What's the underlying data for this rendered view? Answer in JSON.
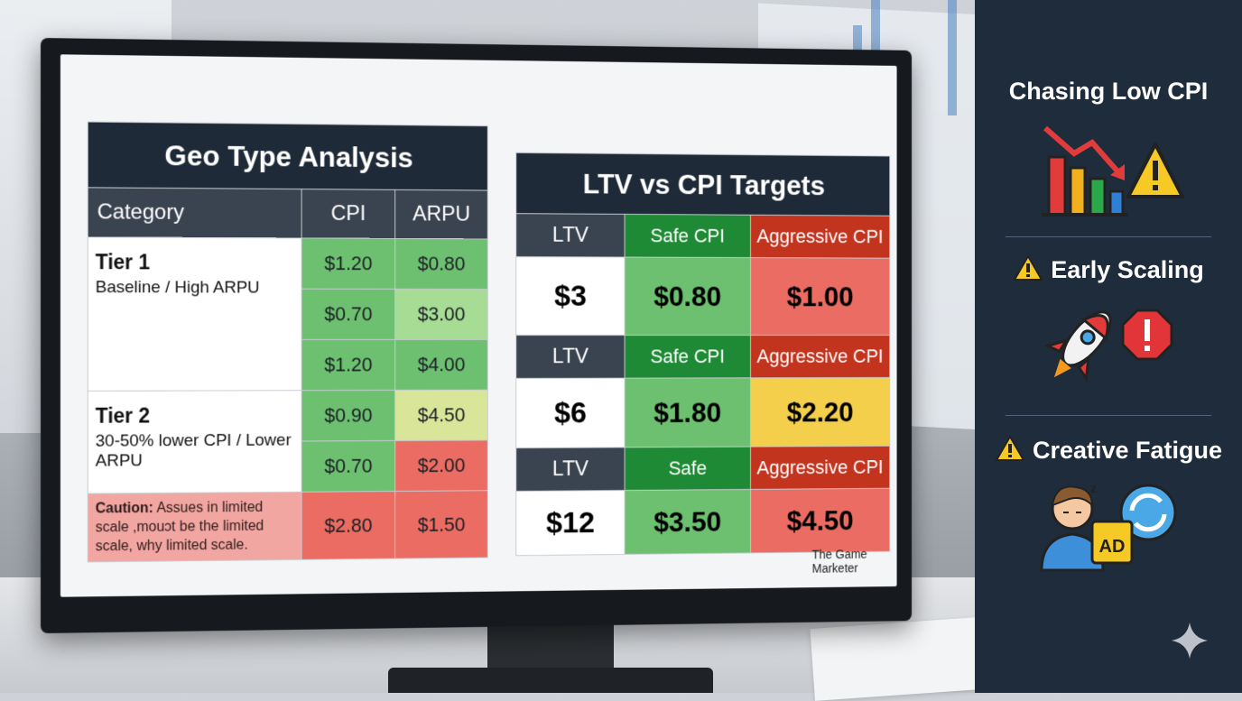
{
  "geo_table": {
    "title": "Geo Type Analysis",
    "columns": [
      "Category",
      "CPI",
      "ARPU"
    ],
    "tier1": {
      "name": "Tier 1",
      "desc": "Baseline / High ARPU",
      "rows": [
        [
          "$1.20",
          "$0.80"
        ],
        [
          "$0.70",
          "$3.00"
        ],
        [
          "$1.20",
          "$4.00"
        ]
      ]
    },
    "tier2": {
      "name": "Tier 2",
      "desc": "30-50% lower CPI / Lower ARPU",
      "rows": [
        [
          "$0.90",
          "$4.50"
        ],
        [
          "$0.70",
          "$2.00"
        ]
      ]
    },
    "caution": {
      "label": "Caution:",
      "text": "Assues in limited scale ,mouɔt be the limited scale, why limited scale.",
      "cpi": "$2.80",
      "arpu": "$1.50"
    }
  },
  "ltv_table": {
    "title": "LTV vs CPI Targets",
    "blocks": [
      {
        "ltv_label": "LTV",
        "safe_label": "Safe CPI",
        "aggr_label": "Aggressive CPI",
        "ltv": "$3",
        "safe": "$0.80",
        "aggr": "$1.00"
      },
      {
        "ltv_label": "LTV",
        "safe_label": "Safe CPI",
        "aggr_label": "Aggressive CPI",
        "ltv": "$6",
        "safe": "$1.80",
        "aggr": "$2.20"
      },
      {
        "ltv_label": "LTV",
        "safe_label": "Safe",
        "aggr_label": "Aggressive CPI",
        "ltv": "$12",
        "safe": "$3.50",
        "aggr": "$4.50"
      }
    ],
    "credit": "The Game Marketer"
  },
  "sidebar": {
    "items": [
      {
        "title": "Chasing Low CPI",
        "icon": "falling-bar-chart-warning-icon"
      },
      {
        "title": "Early Scaling",
        "icon": "rocket-stop-icon"
      },
      {
        "title": "Creative Fatigue",
        "icon": "tired-person-ad-refresh-icon"
      }
    ],
    "ad_label": "AD"
  }
}
